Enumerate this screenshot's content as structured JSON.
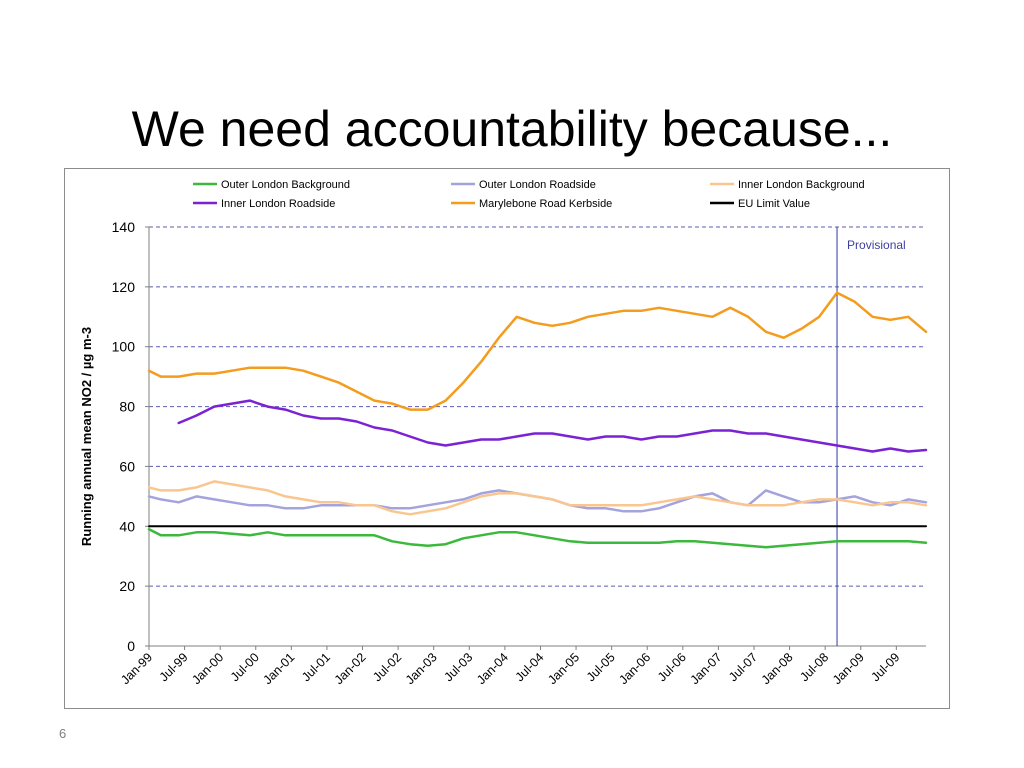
{
  "slide": {
    "title": "We need accountability because...",
    "number": "6"
  },
  "chart_data": {
    "type": "line",
    "ylabel": "Running annual mean NO2 / µg m-3",
    "xlabel": "",
    "ylim": [
      0,
      140
    ],
    "yticks": [
      0,
      20,
      40,
      60,
      80,
      100,
      120,
      140
    ],
    "grid": true,
    "legend_position": "top",
    "x_range": [
      "1999-01",
      "2009-12"
    ],
    "x_tick_labels": [
      "Jan-99",
      "Jul-99",
      "Jan-00",
      "Jul-00",
      "Jan-01",
      "Jul-01",
      "Jan-02",
      "Jul-02",
      "Jan-03",
      "Jul-03",
      "Jan-04",
      "Jul-04",
      "Jan-05",
      "Jul-05",
      "Jan-06",
      "Jul-06",
      "Jan-07",
      "Jul-07",
      "Jan-08",
      "Jul-08",
      "Jan-09",
      "Jul-09"
    ],
    "annotations": [
      {
        "label": "Provisional",
        "x": "2008-09",
        "color": "#3f3f9f"
      }
    ],
    "series": [
      {
        "name": "Outer London Background",
        "color": "#3cb93c",
        "x": [
          "1999-01",
          "1999-03",
          "1999-06",
          "1999-09",
          "1999-12",
          "2000-03",
          "2000-06",
          "2000-09",
          "2000-12",
          "2001-03",
          "2001-06",
          "2001-09",
          "2001-12",
          "2002-03",
          "2002-06",
          "2002-09",
          "2002-12",
          "2003-03",
          "2003-06",
          "2003-09",
          "2003-12",
          "2004-03",
          "2004-06",
          "2004-09",
          "2004-12",
          "2005-03",
          "2005-06",
          "2005-09",
          "2005-12",
          "2006-03",
          "2006-06",
          "2006-09",
          "2006-12",
          "2007-03",
          "2007-06",
          "2007-09",
          "2007-12",
          "2008-03",
          "2008-06",
          "2008-09",
          "2008-12",
          "2009-03",
          "2009-06",
          "2009-09",
          "2009-12"
        ],
        "values": [
          39,
          37,
          37,
          38,
          38,
          37.5,
          37,
          38,
          37,
          37,
          37,
          37,
          37,
          37,
          35,
          34,
          33.5,
          34,
          36,
          37,
          38,
          38,
          37,
          36,
          35,
          34.5,
          34.5,
          34.5,
          34.5,
          34.5,
          35,
          35,
          34.5,
          34,
          33.5,
          33,
          33.5,
          34,
          34.5,
          35,
          35,
          35,
          35,
          35,
          34.5
        ]
      },
      {
        "name": "Outer London Roadside",
        "color": "#a3a3de",
        "x": [
          "1999-01",
          "1999-03",
          "1999-06",
          "1999-09",
          "1999-12",
          "2000-03",
          "2000-06",
          "2000-09",
          "2000-12",
          "2001-03",
          "2001-06",
          "2001-09",
          "2001-12",
          "2002-03",
          "2002-06",
          "2002-09",
          "2002-12",
          "2003-03",
          "2003-06",
          "2003-09",
          "2003-12",
          "2004-03",
          "2004-06",
          "2004-09",
          "2004-12",
          "2005-03",
          "2005-06",
          "2005-09",
          "2005-12",
          "2006-03",
          "2006-06",
          "2006-09",
          "2006-12",
          "2007-03",
          "2007-06",
          "2007-09",
          "2007-12",
          "2008-03",
          "2008-06",
          "2008-09",
          "2008-12",
          "2009-03",
          "2009-06",
          "2009-09",
          "2009-12"
        ],
        "values": [
          50,
          49,
          48,
          50,
          49,
          48,
          47,
          47,
          46,
          46,
          47,
          47,
          47,
          47,
          46,
          46,
          47,
          48,
          49,
          51,
          52,
          51,
          50,
          49,
          47,
          46,
          46,
          45,
          45,
          46,
          48,
          50,
          51,
          48,
          47,
          52,
          50,
          48,
          48,
          49,
          50,
          48,
          47,
          49,
          48
        ]
      },
      {
        "name": "Inner London Background",
        "color": "#f9c690",
        "x": [
          "1999-01",
          "1999-03",
          "1999-06",
          "1999-09",
          "1999-12",
          "2000-03",
          "2000-06",
          "2000-09",
          "2000-12",
          "2001-03",
          "2001-06",
          "2001-09",
          "2001-12",
          "2002-03",
          "2002-06",
          "2002-09",
          "2002-12",
          "2003-03",
          "2003-06",
          "2003-09",
          "2003-12",
          "2004-03",
          "2004-06",
          "2004-09",
          "2004-12",
          "2005-03",
          "2005-06",
          "2005-09",
          "2005-12",
          "2006-03",
          "2006-06",
          "2006-09",
          "2006-12",
          "2007-03",
          "2007-06",
          "2007-09",
          "2007-12",
          "2008-03",
          "2008-06",
          "2008-09",
          "2008-12",
          "2009-03",
          "2009-06",
          "2009-09",
          "2009-12"
        ],
        "values": [
          53,
          52,
          52,
          53,
          55,
          54,
          53,
          52,
          50,
          49,
          48,
          48,
          47,
          47,
          45,
          44,
          45,
          46,
          48,
          50,
          51,
          51,
          50,
          49,
          47,
          47,
          47,
          47,
          47,
          48,
          49,
          50,
          49,
          48,
          47,
          47,
          47,
          48,
          49,
          49,
          48,
          47,
          48,
          48,
          47
        ]
      },
      {
        "name": "Inner London Roadside",
        "color": "#7a22d4",
        "x": [
          "1999-06",
          "1999-09",
          "1999-12",
          "2000-03",
          "2000-06",
          "2000-09",
          "2000-12",
          "2001-03",
          "2001-06",
          "2001-09",
          "2001-12",
          "2002-03",
          "2002-06",
          "2002-09",
          "2002-12",
          "2003-03",
          "2003-06",
          "2003-09",
          "2003-12",
          "2004-03",
          "2004-06",
          "2004-09",
          "2004-12",
          "2005-03",
          "2005-06",
          "2005-09",
          "2005-12",
          "2006-03",
          "2006-06",
          "2006-09",
          "2006-12",
          "2007-03",
          "2007-06",
          "2007-09",
          "2007-12",
          "2008-03",
          "2008-06",
          "2008-09",
          "2008-12",
          "2009-03",
          "2009-06",
          "2009-09",
          "2009-12"
        ],
        "values": [
          74.5,
          77,
          80,
          81,
          82,
          80,
          79,
          77,
          76,
          76,
          75,
          73,
          72,
          70,
          68,
          67,
          68,
          69,
          69,
          70,
          71,
          71,
          70,
          69,
          70,
          70,
          69,
          70,
          70,
          71,
          72,
          72,
          71,
          71,
          70,
          69,
          68,
          67,
          66,
          65,
          66,
          65,
          65.5
        ]
      },
      {
        "name": "Marylebone Road Kerbside",
        "color": "#f39c1e",
        "x": [
          "1999-01",
          "1999-03",
          "1999-06",
          "1999-09",
          "1999-12",
          "2000-03",
          "2000-06",
          "2000-09",
          "2000-12",
          "2001-03",
          "2001-06",
          "2001-09",
          "2001-12",
          "2002-03",
          "2002-06",
          "2002-09",
          "2002-12",
          "2003-03",
          "2003-06",
          "2003-09",
          "2003-12",
          "2004-03",
          "2004-06",
          "2004-09",
          "2004-12",
          "2005-03",
          "2005-06",
          "2005-09",
          "2005-12",
          "2006-03",
          "2006-06",
          "2006-09",
          "2006-12",
          "2007-03",
          "2007-06",
          "2007-09",
          "2007-12",
          "2008-03",
          "2008-06",
          "2008-09",
          "2008-12",
          "2009-03",
          "2009-06",
          "2009-09",
          "2009-12"
        ],
        "values": [
          92,
          90,
          90,
          91,
          91,
          92,
          93,
          93,
          93,
          92,
          90,
          88,
          85,
          82,
          81,
          79,
          79,
          82,
          88,
          95,
          103,
          110,
          108,
          107,
          108,
          110,
          111,
          112,
          112,
          113,
          112,
          111,
          110,
          113,
          110,
          105,
          103,
          106,
          110,
          118,
          115,
          110,
          109,
          110,
          105
        ]
      },
      {
        "name": "EU Limit Value",
        "color": "#000000",
        "x": [
          "1999-01",
          "2009-12"
        ],
        "values": [
          40,
          40
        ]
      }
    ]
  }
}
